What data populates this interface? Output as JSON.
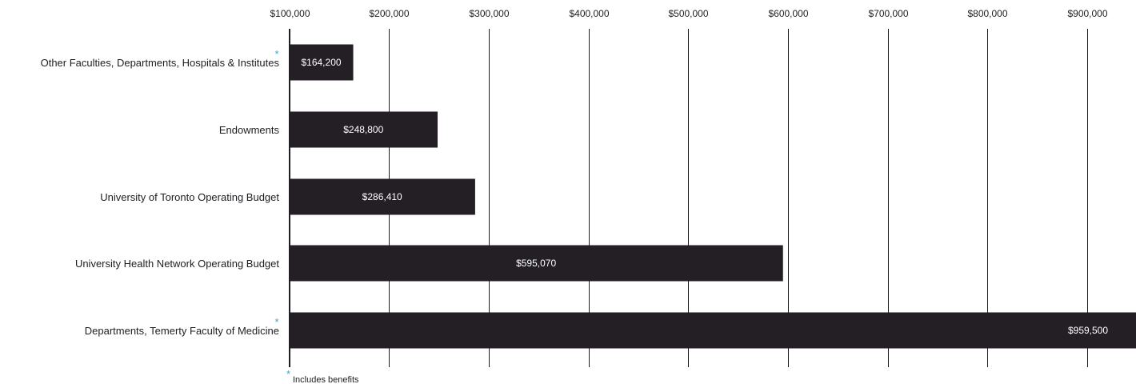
{
  "chart_data": {
    "type": "bar",
    "orientation": "horizontal",
    "categories": [
      "Other Faculties, Departments, Hospitals & Institutes",
      "Endowments",
      "University of Toronto Operating Budget",
      "University Health Network Operating Budget",
      "Departments, Temerty Faculty of Medicine"
    ],
    "values": [
      164200,
      248800,
      286410,
      595070,
      959500
    ],
    "value_labels": [
      "$164,200",
      "$248,800",
      "$286,410",
      "$595,070",
      "$959,500"
    ],
    "asterisk": [
      true,
      false,
      false,
      false,
      true
    ],
    "x_ticks": [
      100000,
      200000,
      300000,
      400000,
      500000,
      600000,
      700000,
      800000,
      900000
    ],
    "x_tick_labels": [
      "$100,000",
      "$200,000",
      "$300,000",
      "$400,000",
      "$500,000",
      "$600,000",
      "$700,000",
      "$800,000",
      "$900,000"
    ],
    "xlim": [
      100000,
      949000
    ],
    "x_axis_position": "top",
    "grid": true,
    "title": "",
    "xlabel": "",
    "ylabel": "",
    "footnote": {
      "marker": "*",
      "text": "Includes benefits"
    }
  },
  "colors": {
    "bar": "#231f24",
    "grid": "#1f1d22",
    "bar_text": "#ffffff",
    "asterisk": "#4aa3c4",
    "text": "#1f1d22"
  }
}
